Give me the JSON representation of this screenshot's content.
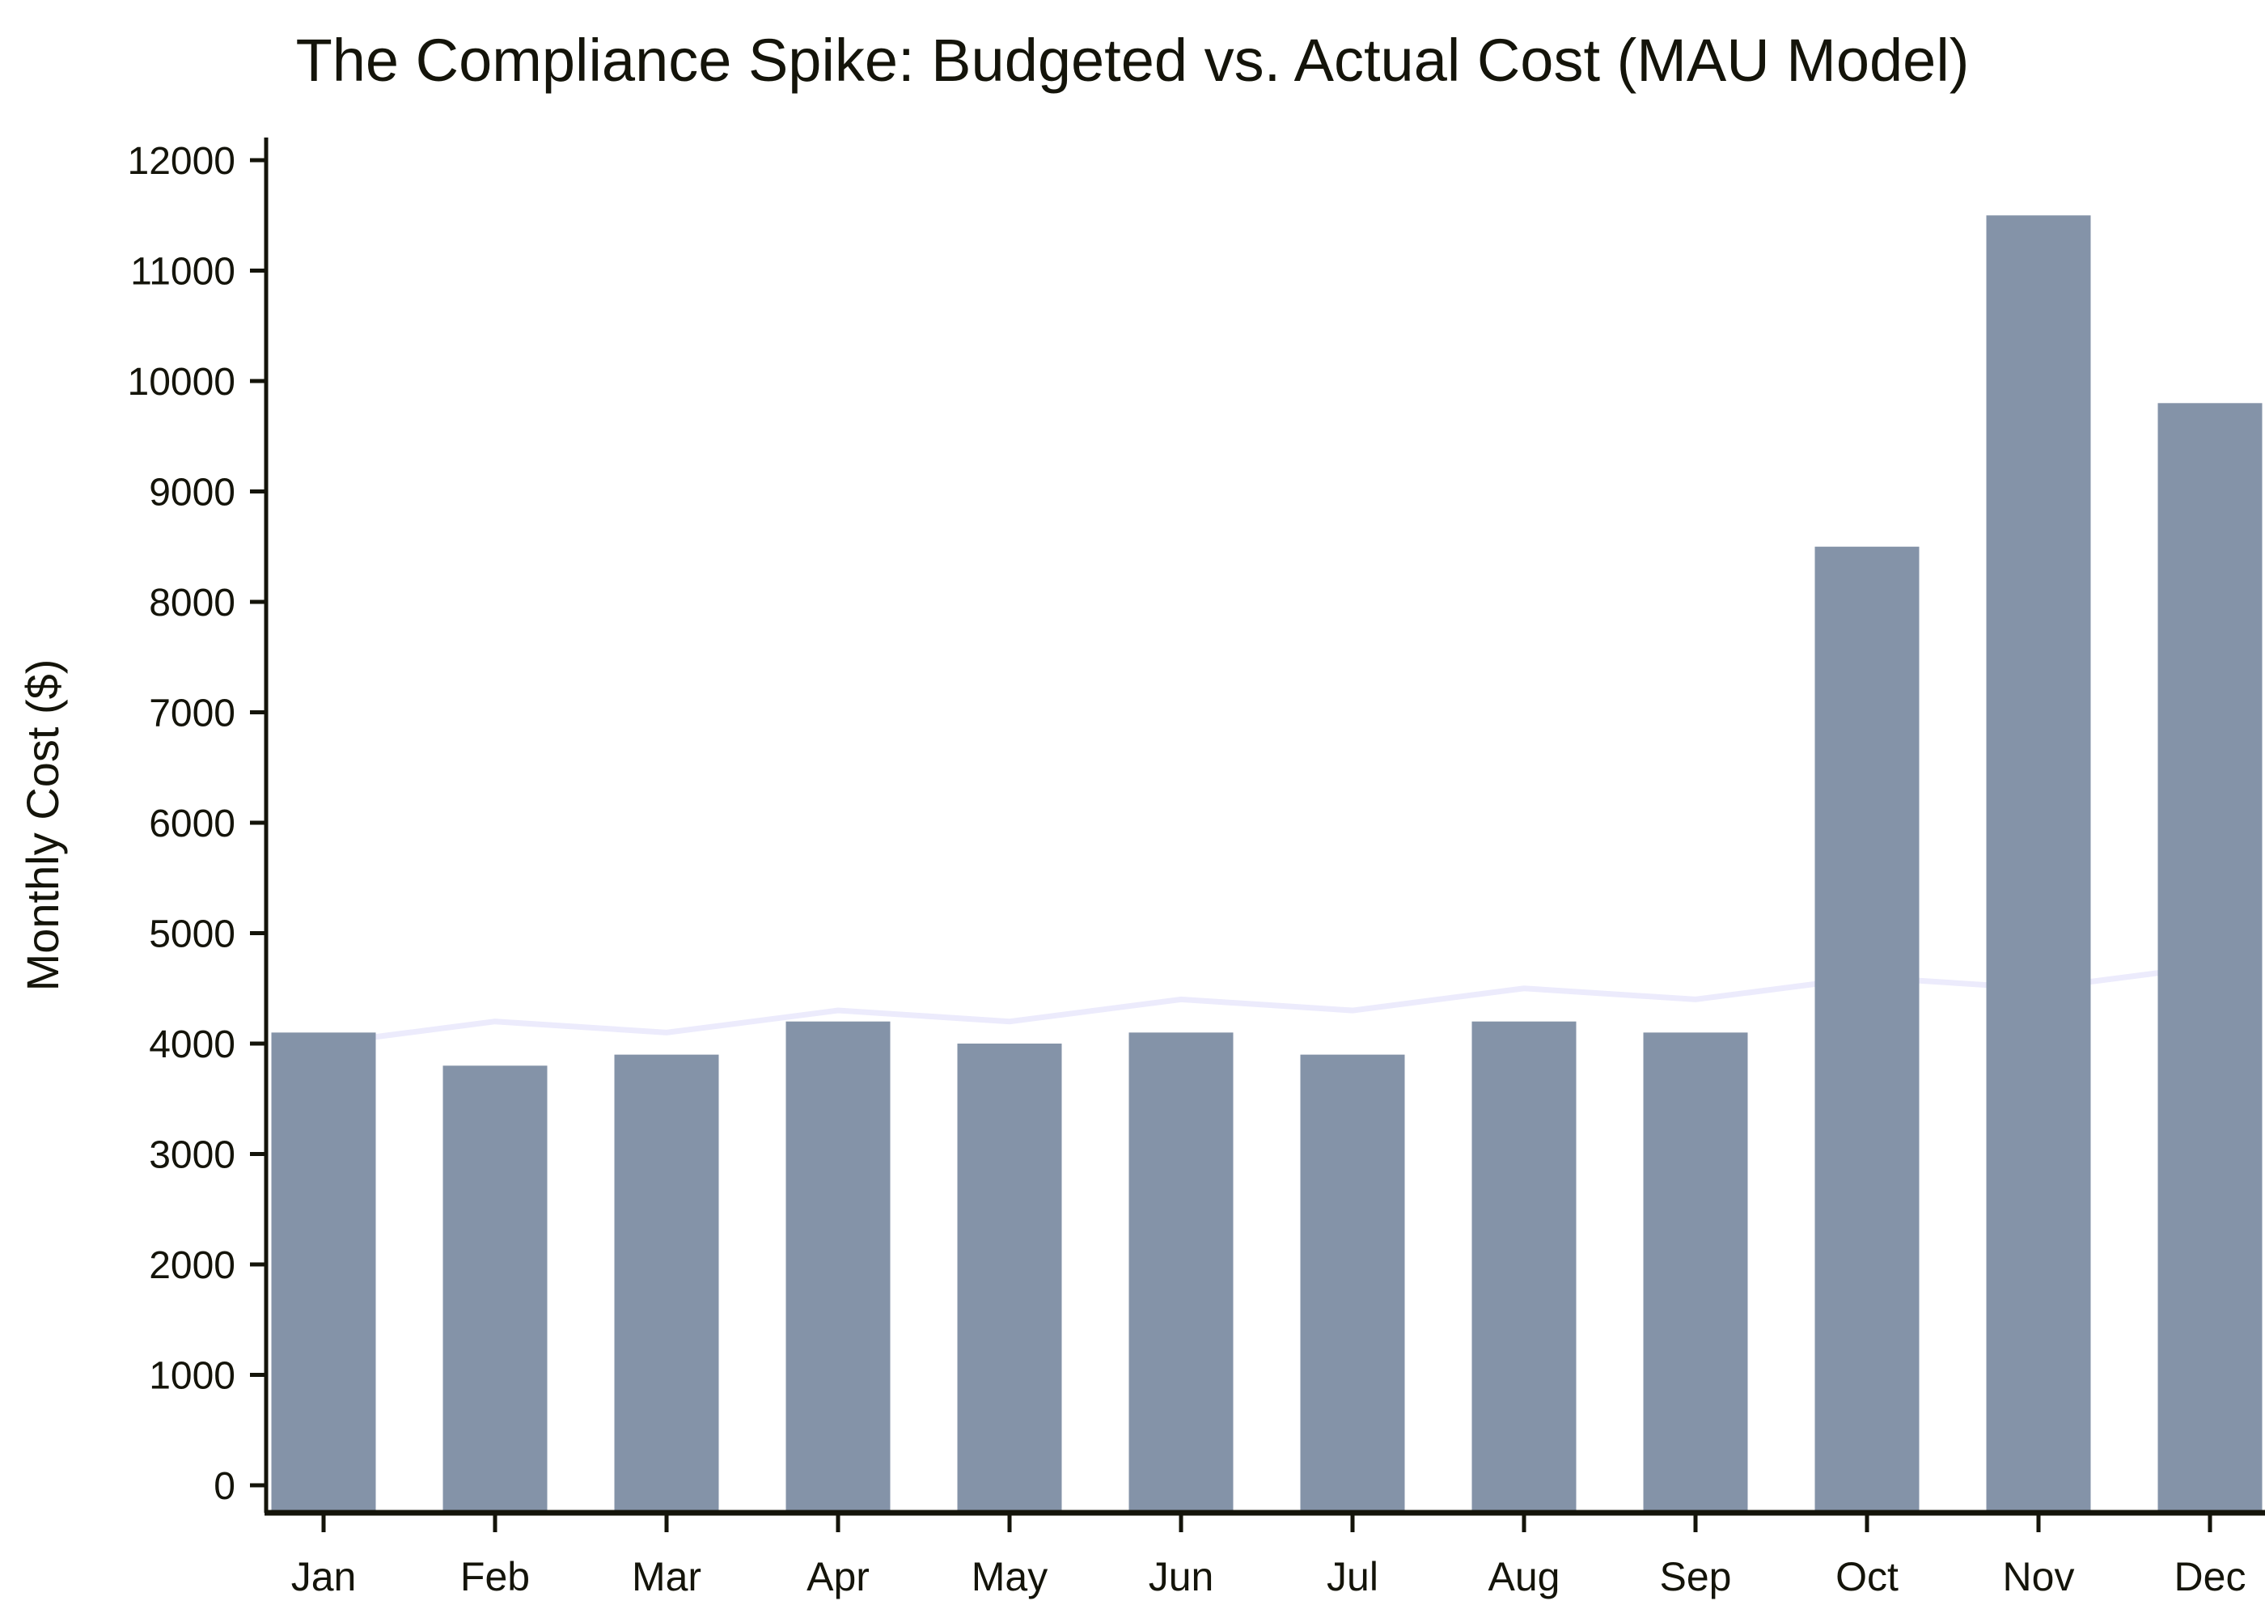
{
  "chart_data": {
    "type": "bar",
    "title": "The Compliance Spike: Budgeted vs. Actual Cost (MAU Model)",
    "xlabel": "",
    "ylabel": "Monthly Cost ($)",
    "ylim": [
      0,
      12000
    ],
    "yticks": [
      0,
      1000,
      2000,
      3000,
      4000,
      5000,
      6000,
      7000,
      8000,
      9000,
      10000,
      11000,
      12000
    ],
    "categories": [
      "Jan",
      "Feb",
      "Mar",
      "Apr",
      "May",
      "Jun",
      "Jul",
      "Aug",
      "Sep",
      "Oct",
      "Nov",
      "Dec"
    ],
    "series": [
      {
        "type": "bar",
        "color": "#8493a8",
        "values": [
          4100,
          3800,
          3900,
          4200,
          4000,
          4100,
          3900,
          4200,
          4100,
          8500,
          11500,
          9800
        ]
      },
      {
        "type": "line",
        "color": "#ecebfc",
        "values": [
          4000,
          4200,
          4100,
          4300,
          4200,
          4400,
          4300,
          4500,
          4400,
          4600,
          4500,
          4700
        ]
      }
    ],
    "grid": false,
    "legend": "none"
  }
}
